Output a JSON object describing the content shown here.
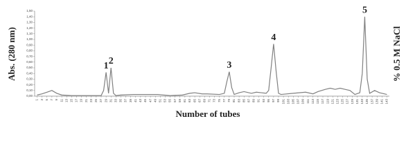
{
  "chart_data": {
    "type": "line",
    "xlabel": "Number of tubes",
    "ylabel": "Abs. (280 nm)",
    "y2label": "% 0.5 M NaCl",
    "series": [
      {
        "color": "#808080",
        "x": [
          1,
          3,
          5,
          7,
          9,
          11,
          15,
          20,
          25,
          27,
          28,
          29,
          30,
          31,
          32,
          33,
          35,
          40,
          45,
          50,
          55,
          60,
          63,
          65,
          68,
          70,
          75,
          77,
          78,
          79,
          80,
          81,
          83,
          85,
          88,
          90,
          92,
          94,
          95,
          96,
          97,
          98,
          99,
          100,
          105,
          110,
          113,
          115,
          118,
          120,
          122,
          124,
          126,
          128,
          130,
          132,
          133,
          134,
          135,
          136,
          138,
          140,
          143
        ],
        "values": [
          0.02,
          0.04,
          0.07,
          0.1,
          0.05,
          0.02,
          0.01,
          0.01,
          0.01,
          0.01,
          0.1,
          0.42,
          0.05,
          0.5,
          0.05,
          0.01,
          0.02,
          0.03,
          0.03,
          0.03,
          0.01,
          0.02,
          0.05,
          0.06,
          0.04,
          0.04,
          0.03,
          0.05,
          0.25,
          0.43,
          0.15,
          0.03,
          0.06,
          0.08,
          0.05,
          0.07,
          0.06,
          0.05,
          0.1,
          0.5,
          0.92,
          0.45,
          0.05,
          0.03,
          0.05,
          0.07,
          0.04,
          0.08,
          0.12,
          0.14,
          0.12,
          0.14,
          0.12,
          0.1,
          0.03,
          0.06,
          0.4,
          1.4,
          0.3,
          0.05,
          0.1,
          0.06,
          0.03
        ]
      }
    ],
    "annotations": [
      {
        "text": "1",
        "x": 29,
        "y": 0.42
      },
      {
        "text": "2",
        "x": 31,
        "y": 0.5
      },
      {
        "text": "3",
        "x": 79,
        "y": 0.43
      },
      {
        "text": "4",
        "x": 97,
        "y": 0.92
      },
      {
        "text": "5",
        "x": 134,
        "y": 1.4
      }
    ],
    "xlim": [
      0,
      144
    ],
    "xticks": [
      1,
      3,
      5,
      7,
      9,
      11,
      13,
      15,
      17,
      19,
      21,
      23,
      25,
      27,
      29,
      31,
      33,
      35,
      37,
      39,
      41,
      43,
      45,
      47,
      49,
      51,
      53,
      55,
      57,
      59,
      61,
      63,
      65,
      67,
      69,
      71,
      73,
      75,
      77,
      79,
      81,
      83,
      85,
      87,
      89,
      91,
      93,
      95,
      97,
      99,
      101,
      103,
      105,
      107,
      109,
      111,
      113,
      115,
      117,
      119,
      121,
      123,
      125,
      127,
      129,
      131,
      133,
      135,
      137,
      139,
      141,
      143
    ],
    "ylim": [
      0,
      1.5
    ],
    "yticks": [
      {
        "value": 0,
        "label": "0,00"
      },
      {
        "value": 0.1,
        "label": "0,10"
      },
      {
        "value": 0.2,
        "label": "0,20"
      },
      {
        "value": 0.3,
        "label": "0,30"
      },
      {
        "value": 0.4,
        "label": "0,40"
      },
      {
        "value": 0.5,
        "label": "0,50"
      },
      {
        "value": 0.6,
        "label": "0,60"
      },
      {
        "value": 0.7,
        "label": "0,70"
      },
      {
        "value": 0.8,
        "label": "0,80"
      },
      {
        "value": 0.9,
        "label": "0,90"
      },
      {
        "value": 1.0,
        "label": "1,00"
      },
      {
        "value": 1.1,
        "label": "1,10"
      },
      {
        "value": 1.2,
        "label": "1,20"
      },
      {
        "value": 1.3,
        "label": "1,30"
      },
      {
        "value": 1.4,
        "label": "1,40"
      },
      {
        "value": 1.5,
        "label": "1,50"
      }
    ]
  }
}
